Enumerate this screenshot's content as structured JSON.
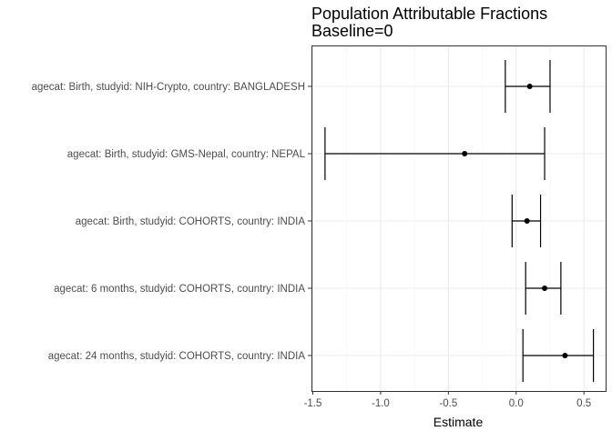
{
  "chart_data": {
    "type": "forest",
    "title": "Population Attributable Fractions",
    "subtitle": "Baseline=0",
    "xlabel": "Estimate",
    "ylabel": "",
    "xlim": [
      -1.51,
      0.66
    ],
    "xticks": [
      -1.5,
      -1.0,
      -0.5,
      0.0,
      0.5
    ],
    "xtick_labels": [
      "-1.5",
      "-1.0",
      "-0.5",
      "0.0",
      "0.5"
    ],
    "grid": true,
    "theme": "bw",
    "categories": [
      "agecat: Birth, studyid: NIH-Crypto, country: BANGLADESH",
      "agecat: Birth, studyid: GMS-Nepal, country: NEPAL",
      "agecat: Birth, studyid: COHORTS, country: INDIA",
      "agecat: 6 months, studyid: COHORTS, country: INDIA",
      "agecat: 24 months, studyid: COHORTS, country: INDIA"
    ],
    "estimates": [
      0.1,
      -0.38,
      0.08,
      0.21,
      0.36
    ],
    "lower": [
      -0.08,
      -1.41,
      -0.03,
      0.07,
      0.05
    ],
    "upper": [
      0.25,
      0.21,
      0.18,
      0.33,
      0.57
    ],
    "colors": {
      "line": "#000000",
      "grid_major": "#ebebeb",
      "grid_minor": "#f5f5f5",
      "panel_border": "#333333",
      "tick_text": "#4d4d4d"
    }
  }
}
